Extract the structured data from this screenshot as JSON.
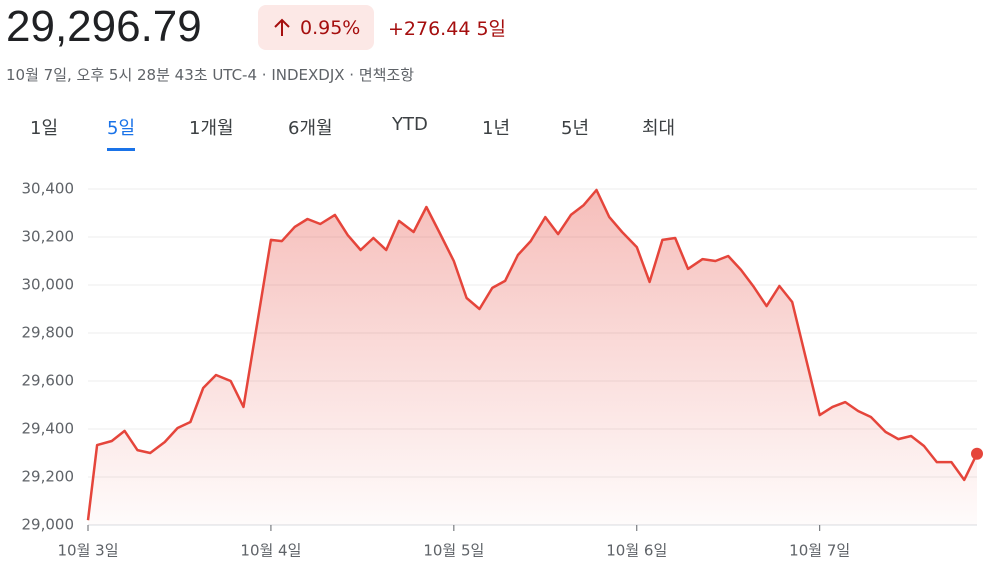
{
  "header": {
    "price": "29,296.79",
    "change_percent": "0.95%",
    "change": "+276.44",
    "period": "5일",
    "timestamp": "10월 7일, 오후 5시 28분 43초 UTC-4 · INDEXDJX ·",
    "disclaimer": "면책조항"
  },
  "tabs": [
    "1일",
    "5일",
    "1개월",
    "6개월",
    "YTD",
    "1년",
    "5년",
    "최대"
  ],
  "active_tab": 1,
  "chart_data": {
    "type": "area",
    "x": [
      0,
      0.05,
      0.13,
      0.2,
      0.27,
      0.34,
      0.42,
      0.49,
      0.56,
      0.63,
      0.7,
      0.78,
      0.85,
      1.0,
      1.06,
      1.13,
      1.2,
      1.27,
      1.35,
      1.42,
      1.49,
      1.56,
      1.63,
      1.7,
      1.78,
      1.85,
      1.92,
      2.0,
      2.07,
      2.14,
      2.21,
      2.28,
      2.35,
      2.42,
      2.5,
      2.57,
      2.64,
      2.71,
      2.78,
      2.85,
      2.92,
      3.0,
      3.07,
      3.14,
      3.21,
      3.28,
      3.36,
      3.43,
      3.5,
      3.57,
      3.64,
      3.71,
      3.78,
      3.85,
      4.0,
      4.07,
      4.14,
      4.21,
      4.28,
      4.36,
      4.43,
      4.5,
      4.57,
      4.64,
      4.72,
      4.79,
      4.86
    ],
    "values": [
      29020,
      29333,
      29350,
      29392,
      29312,
      29300,
      29346,
      29404,
      29429,
      29571,
      29625,
      29600,
      29492,
      30188,
      30183,
      30242,
      30275,
      30254,
      30292,
      30208,
      30146,
      30196,
      30146,
      30267,
      30221,
      30325,
      30221,
      30100,
      29946,
      29900,
      29988,
      30017,
      30125,
      30183,
      30283,
      30212,
      30292,
      30333,
      30396,
      30283,
      30221,
      30158,
      30013,
      30188,
      30196,
      30067,
      30108,
      30100,
      30121,
      30063,
      29992,
      29912,
      29996,
      29929,
      29458,
      29492,
      29512,
      29475,
      29450,
      29388,
      29358,
      29371,
      29329,
      29262,
      29262,
      29188,
      29297
    ],
    "color": "#e5453b",
    "xlim": [
      0,
      4.86
    ],
    "xticks": [
      {
        "value": 0,
        "label": "10월 3일"
      },
      {
        "value": 1,
        "label": "10월 4일"
      },
      {
        "value": 2,
        "label": "10월 5일"
      },
      {
        "value": 3,
        "label": "10월 6일"
      },
      {
        "value": 4,
        "label": "10월 7일"
      }
    ],
    "ylim": [
      29000,
      30400
    ],
    "yticks": [
      {
        "value": 29000,
        "label": "29,000"
      },
      {
        "value": 29200,
        "label": "29,200"
      },
      {
        "value": 29400,
        "label": "29,400"
      },
      {
        "value": 29600,
        "label": "29,600"
      },
      {
        "value": 29800,
        "label": "29,800"
      },
      {
        "value": 30000,
        "label": "30,000"
      },
      {
        "value": 30200,
        "label": "30,200"
      },
      {
        "value": 30400,
        "label": "30,400"
      }
    ],
    "grid": true
  }
}
